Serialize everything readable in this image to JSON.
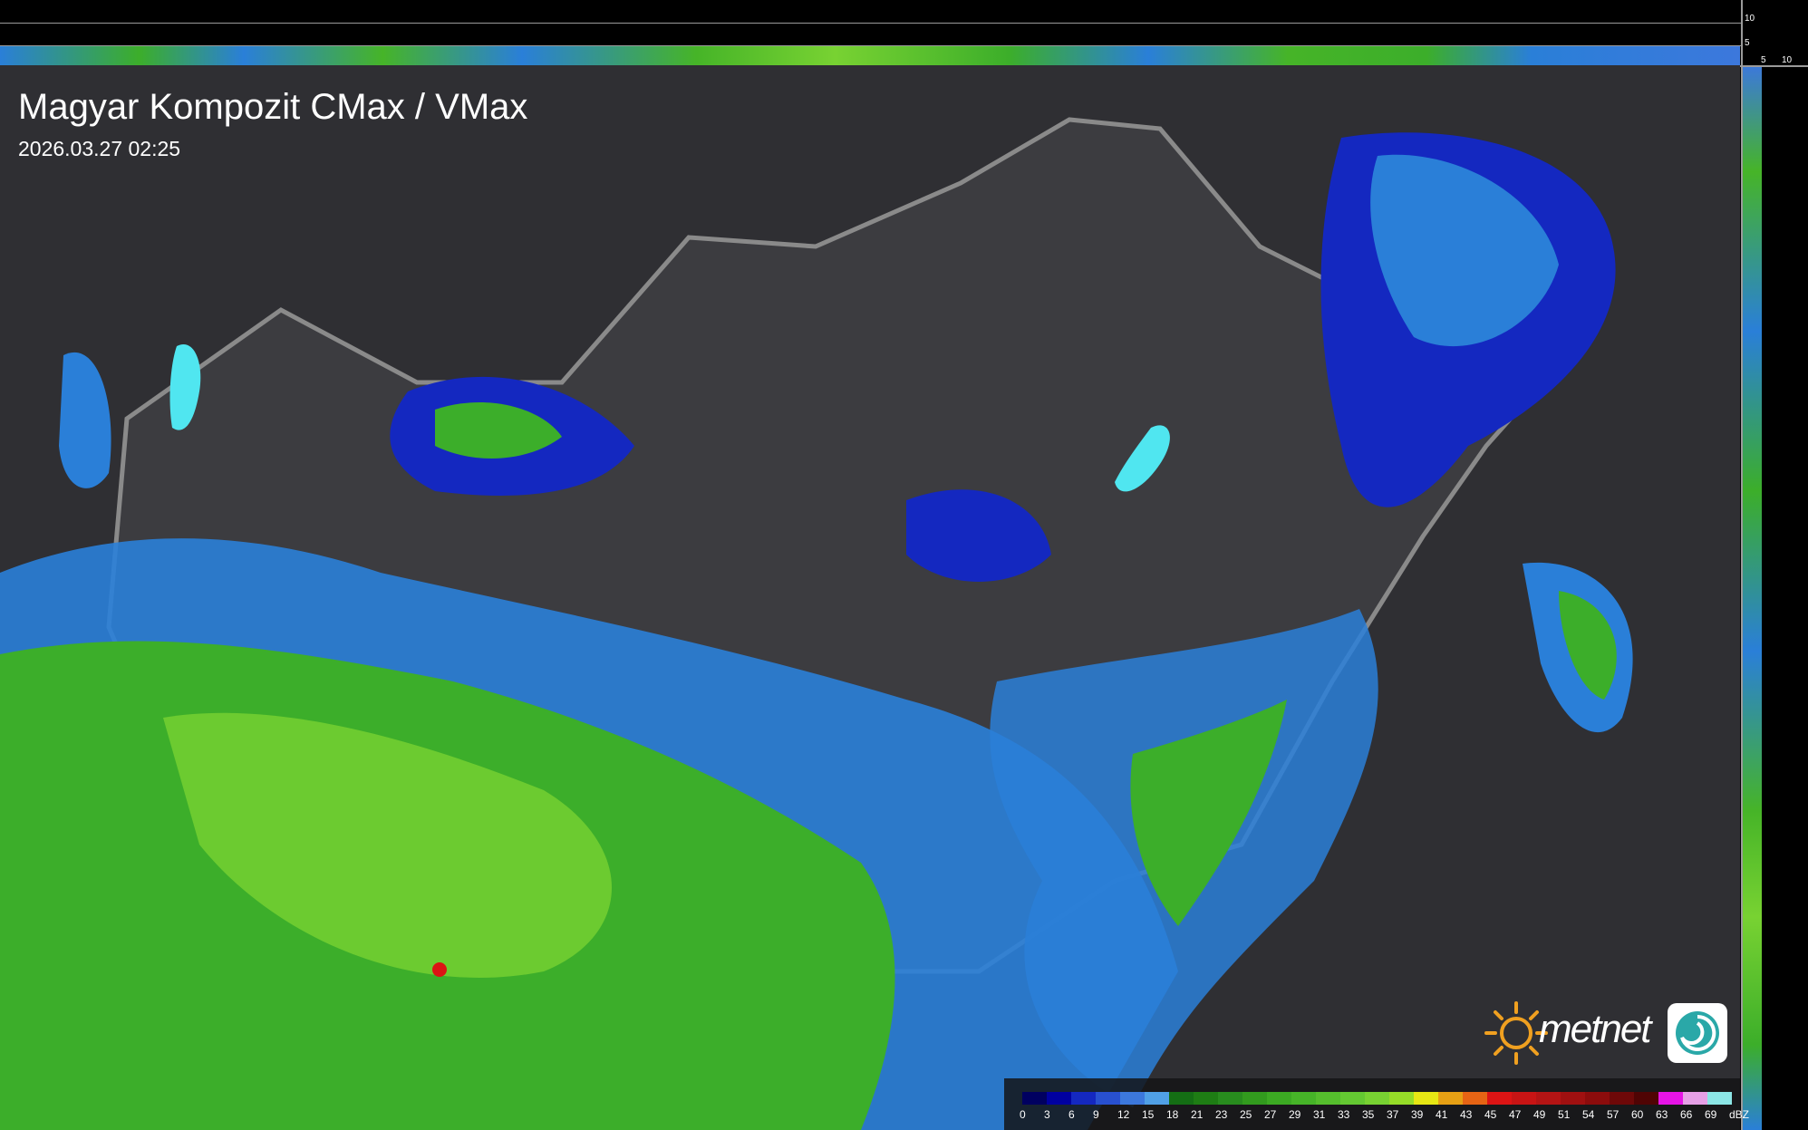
{
  "title": "Magyar Kompozit CMax / VMax",
  "timestamp": "2026.03.27 02:25",
  "profile_axes": {
    "top_ticks": [
      "10",
      "5"
    ],
    "right_ticks": [
      "5",
      "10"
    ]
  },
  "logo": {
    "text": "metnet"
  },
  "legend": {
    "unit": "dBZ",
    "labels": [
      "0",
      "3",
      "6",
      "9",
      "12",
      "15",
      "18",
      "21",
      "23",
      "25",
      "27",
      "29",
      "31",
      "33",
      "35",
      "37",
      "39",
      "41",
      "43",
      "45",
      "47",
      "49",
      "51",
      "54",
      "57",
      "60",
      "63",
      "66",
      "69"
    ],
    "colors": [
      "#000060",
      "#0000a0",
      "#1428c0",
      "#2850d0",
      "#3c78dc",
      "#50a0e6",
      "#146e14",
      "#1e7d14",
      "#288c1e",
      "#329b1e",
      "#3caa23",
      "#46b428",
      "#55be2d",
      "#64c832",
      "#78d232",
      "#96dc28",
      "#e6e614",
      "#e6a014",
      "#e66414",
      "#dc1414",
      "#c81414",
      "#b41414",
      "#a01010",
      "#8c0c0c",
      "#6e0808",
      "#500404",
      "#e614e6",
      "#e6a0e6",
      "#8ce6e6"
    ]
  }
}
